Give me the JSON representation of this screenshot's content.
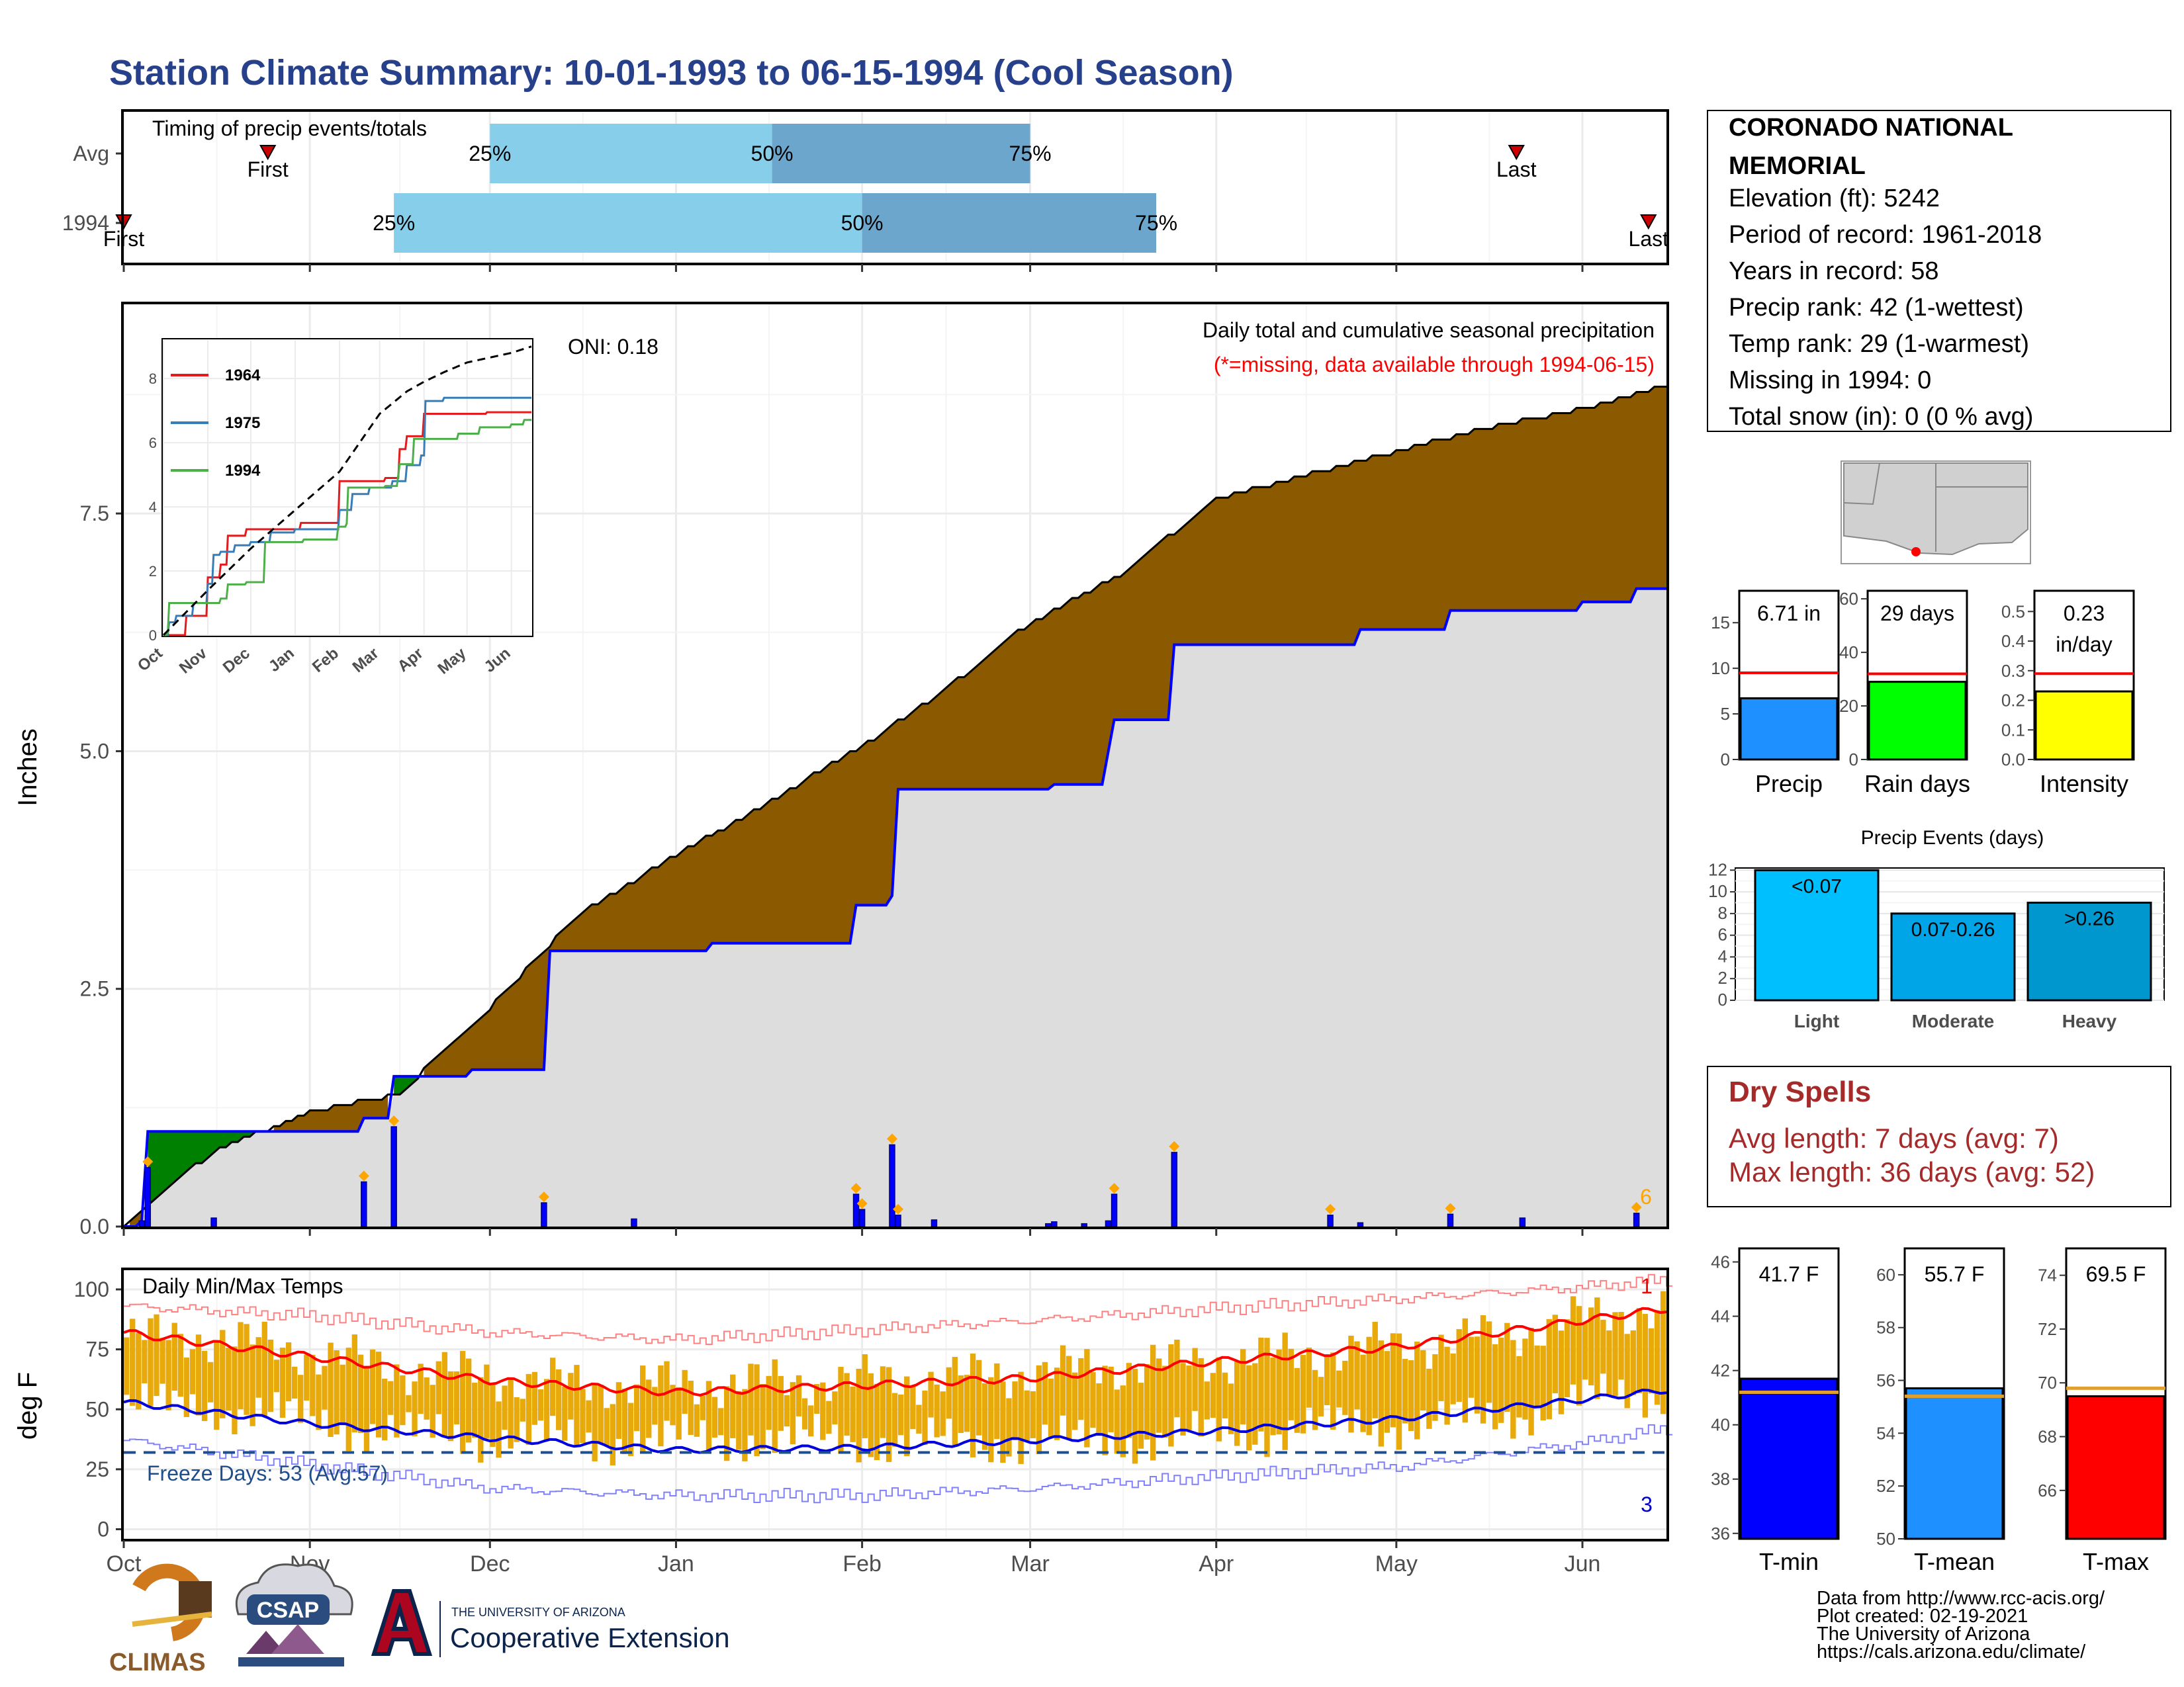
{
  "title": "Station Climate Summary: 10-01-1993 to 06-15-1994 (Cool Season)",
  "colors": {
    "title": "#27408B",
    "cum_1994": "#8B5A00",
    "cum_deficit": "#008000",
    "avg_fill": "#DDDDDD",
    "daily_bar": "#0000FF",
    "temp_bar": "#E8A90A",
    "avg_max": "#FF0000",
    "avg_min": "#0000DD",
    "dry_spell": "#A52A2A",
    "missing": "#FF0000",
    "extreme_marker": "#FFA500"
  },
  "timing": {
    "title": "Timing of precip events/totals",
    "rows": [
      {
        "label": "Avg",
        "q25": "25%",
        "q50": "50%",
        "q75": "75%",
        "first": "First",
        "last": "Last",
        "first_date": "1993-10-25",
        "q25_date": "1993-12-01",
        "q50_date": "1994-01-17",
        "q75_date": "1994-03-01",
        "last_date": "1994-05-21"
      },
      {
        "label": "1994",
        "q25": "25%",
        "q50": "50%",
        "q75": "75%",
        "first": "First",
        "last": "Last",
        "first_date": "1993-10-01",
        "q25_date": "1993-11-15",
        "q50_date": "1994-02-01",
        "q75_date": "1994-03-22",
        "last_date": "1994-06-12"
      }
    ]
  },
  "precip_panel": {
    "ylabel": "Inches",
    "oni": "ONI: 0.18",
    "caption": "Daily total and cumulative seasonal precipitation",
    "missing_note": "(*=missing, data available through 1994-06-15)",
    "count_label": "6"
  },
  "inset": {
    "x_ticks": [
      "Oct",
      "Nov",
      "Dec",
      "Jan",
      "Feb",
      "Mar",
      "Apr",
      "May",
      "Jun"
    ],
    "y_ticks": [
      "0",
      "2",
      "4",
      "6",
      "8"
    ],
    "legend": [
      {
        "name": "1964",
        "color": "#E41A1C"
      },
      {
        "name": "1975",
        "color": "#377EB8"
      },
      {
        "name": "1994",
        "color": "#4DAF4A"
      }
    ]
  },
  "temp_panel": {
    "ylabel": "deg F",
    "title": "Daily Min/Max Temps",
    "freeze": "Freeze Days: 53 (Avg:57)",
    "count_max": "1",
    "count_min": "3"
  },
  "months": [
    "Oct",
    "Nov",
    "Dec",
    "Jan",
    "Feb",
    "Mar",
    "Apr",
    "May",
    "Jun"
  ],
  "station": {
    "name": "CORONADO NATIONAL MEMORIAL",
    "lines": [
      "Elevation (ft): 5242",
      "Period of record: 1961-2018",
      "Years in record: 58",
      "Precip rank: 42 (1-wettest)",
      "Temp rank: 29 (1-warmest)",
      "Missing in 1994: 0",
      "Total snow (in): 0 (0 % avg)"
    ]
  },
  "mini_bars": [
    {
      "label": "Precip",
      "value_text": "6.71 in",
      "value": 6.71,
      "avg": 9.5,
      "ymax": 18.5,
      "ticks": [
        "0",
        "5",
        "10",
        "15"
      ],
      "tick_vals": [
        0,
        5,
        10,
        15
      ],
      "color": "#1E90FF"
    },
    {
      "label": "Rain days",
      "value_text": "29 days",
      "value": 29,
      "avg": 32,
      "ymax": 63,
      "ticks": [
        "0",
        "20",
        "40",
        "60"
      ],
      "tick_vals": [
        0,
        20,
        40,
        60
      ],
      "color": "#00FF00"
    },
    {
      "label": "Intensity",
      "value_text": "0.23 in/day",
      "value": 0.23,
      "avg": 0.29,
      "ymax": 0.57,
      "ticks": [
        "0.0",
        "0.1",
        "0.2",
        "0.3",
        "0.4",
        "0.5"
      ],
      "tick_vals": [
        0,
        0.1,
        0.2,
        0.3,
        0.4,
        0.5
      ],
      "color": "#FFFF00"
    }
  ],
  "precip_events": {
    "title": "Precip Events (days)",
    "ticks": [
      "0",
      "2",
      "4",
      "6",
      "8",
      "10",
      "12"
    ],
    "bars": [
      {
        "category": "Light",
        "label": "<0.07",
        "value": 12,
        "color": "#00BFFF"
      },
      {
        "category": "Moderate",
        "label": "0.07-0.26",
        "value": 8,
        "color": "#00A5E8"
      },
      {
        "category": "Heavy",
        "label": ">0.26",
        "value": 9,
        "color": "#0097CF"
      }
    ]
  },
  "dry_spells": {
    "title": "Dry Spells",
    "avg": "Avg length: 7 days (avg: 7)",
    "max": "Max length: 36 days (avg: 52)"
  },
  "temp_bars": [
    {
      "label": "T-min",
      "value_text": "41.7 F",
      "value": 41.7,
      "avg": 41.2,
      "ymin": 35.8,
      "ymax": 46.5,
      "ticks": [
        "36",
        "38",
        "40",
        "42",
        "44",
        "46"
      ],
      "tick_vals": [
        36,
        38,
        40,
        42,
        44,
        46
      ],
      "color": "#0000FF"
    },
    {
      "label": "T-mean",
      "value_text": "55.7 F",
      "value": 55.7,
      "avg": 55.4,
      "ymin": 50,
      "ymax": 61,
      "ticks": [
        "50",
        "52",
        "54",
        "56",
        "58",
        "60"
      ],
      "tick_vals": [
        50,
        52,
        54,
        56,
        58,
        60
      ],
      "color": "#1E90FF"
    },
    {
      "label": "T-max",
      "value_text": "69.5 F",
      "value": 69.5,
      "avg": 69.8,
      "ymin": 64.2,
      "ymax": 75,
      "ticks": [
        "66",
        "68",
        "70",
        "72",
        "74"
      ],
      "tick_vals": [
        66,
        68,
        70,
        72,
        74
      ],
      "color": "#FF0000"
    }
  ],
  "credits": [
    "Data from http://www.rcc-acis.org/",
    "Plot created: 02-19-2021",
    "The University of Arizona",
    "https://cals.arizona.edu/climate/"
  ],
  "logos": {
    "climas": "CLIMAS",
    "csap": "CSAP",
    "ua_small": "THE UNIVERSITY OF ARIZONA",
    "ua_big": "Cooperative Extension"
  },
  "chart_data": [
    {
      "type": "area",
      "title": "Daily total and cumulative seasonal precipitation",
      "ylabel": "Inches",
      "ylim": [
        0,
        9.7
      ],
      "y_ticks": [
        0,
        2.5,
        5.0,
        7.5
      ],
      "x_ticks": [
        "Oct",
        "Nov",
        "Dec",
        "Jan",
        "Feb",
        "Mar",
        "Apr",
        "May",
        "Jun"
      ],
      "series": [
        {
          "name": "1994",
          "dates": [
            "1993-10-01",
            "1993-10-04",
            "1993-10-05",
            "1993-11-10",
            "1993-11-15",
            "1993-11-28",
            "1993-12-11",
            "1994-01-07",
            "1994-01-31",
            "1994-02-06",
            "1994-02-07",
            "1994-03-05",
            "1994-03-14",
            "1994-03-15",
            "1994-03-25",
            "1994-04-25",
            "1994-05-10",
            "1994-06-01",
            "1994-06-10"
          ],
          "values": [
            0.0,
            0.06,
            1.0,
            1.14,
            1.58,
            1.65,
            2.9,
            2.98,
            3.38,
            3.48,
            4.6,
            4.65,
            4.99,
            5.33,
            6.12,
            6.28,
            6.48,
            6.57,
            6.71
          ]
        },
        {
          "name": "Avg",
          "dates": [
            "1993-10-01",
            "1993-10-16",
            "1993-11-01",
            "1993-11-16",
            "1993-12-01",
            "1993-12-16",
            "1994-01-01",
            "1994-01-16",
            "1994-02-01",
            "1994-02-16",
            "1994-03-01",
            "1994-03-16",
            "1994-04-01",
            "1994-04-16",
            "1994-05-01",
            "1994-05-16",
            "1994-06-01",
            "1994-06-15"
          ],
          "values": [
            0.0,
            0.8,
            1.2,
            1.4,
            2.3,
            3.3,
            3.9,
            4.45,
            5.05,
            5.7,
            6.35,
            6.85,
            7.65,
            7.9,
            8.15,
            8.4,
            8.6,
            8.85
          ]
        }
      ],
      "daily_bars": {
        "dates": [
          "1993-10-04",
          "1993-10-05",
          "1993-10-16",
          "1993-11-10",
          "1993-11-15",
          "1993-12-10",
          "1993-12-25",
          "1994-01-31",
          "1994-02-01",
          "1994-02-06",
          "1994-02-07",
          "1994-02-13",
          "1994-03-04",
          "1994-03-05",
          "1994-03-10",
          "1994-03-14",
          "1994-03-15",
          "1994-03-25",
          "1994-04-20",
          "1994-04-25",
          "1994-05-10",
          "1994-05-22",
          "1994-06-10"
        ],
        "values": [
          0.06,
          0.62,
          0.09,
          0.47,
          1.05,
          0.25,
          0.08,
          0.34,
          0.18,
          0.86,
          0.12,
          0.07,
          0.03,
          0.05,
          0.03,
          0.06,
          0.34,
          0.78,
          0.12,
          0.04,
          0.13,
          0.09,
          0.14
        ]
      }
    },
    {
      "type": "line",
      "title": "",
      "ylim": [
        0,
        9.2
      ],
      "series": [
        {
          "name": "1964",
          "dates": [
            "1993-10-01",
            "1993-10-16",
            "1993-10-17",
            "1993-10-28",
            "1993-11-01",
            "1993-11-10",
            "1993-11-15",
            "1993-11-28",
            "1993-12-15",
            "1994-01-05",
            "1994-01-20",
            "1994-02-01",
            "1994-02-15",
            "1994-03-01",
            "1994-03-05",
            "1994-03-15",
            "1994-03-20",
            "1994-03-29",
            "1994-04-01",
            "1994-04-15",
            "1994-05-15",
            "1994-06-15"
          ],
          "values": [
            0.0,
            0.0,
            0.6,
            0.6,
            1.8,
            2.2,
            3.1,
            3.3,
            3.3,
            3.5,
            3.5,
            4.8,
            4.8,
            4.8,
            4.9,
            5.8,
            6.2,
            6.2,
            6.9,
            6.9,
            6.95,
            6.95
          ]
        },
        {
          "name": "1975",
          "dates": [
            "1993-10-01",
            "1993-10-05",
            "1993-10-10",
            "1993-10-22",
            "1993-10-28",
            "1993-11-01",
            "1993-11-05",
            "1993-11-10",
            "1993-11-20",
            "1993-12-01",
            "1993-12-15",
            "1994-01-01",
            "1994-01-15",
            "1994-02-01",
            "1994-02-10",
            "1994-02-15",
            "1994-02-22",
            "1994-03-01",
            "1994-03-10",
            "1994-03-20",
            "1994-03-30",
            "1994-04-02",
            "1994-04-15",
            "1994-05-15",
            "1994-06-15"
          ],
          "values": [
            0.0,
            0.4,
            0.6,
            1.0,
            1.0,
            1.6,
            2.5,
            2.6,
            2.8,
            2.9,
            3.2,
            3.3,
            3.3,
            3.9,
            4.4,
            4.4,
            4.6,
            4.6,
            4.8,
            5.3,
            5.6,
            7.3,
            7.4,
            7.4,
            7.4
          ]
        },
        {
          "name": "1994",
          "dates": [
            "1993-10-01",
            "1993-10-04",
            "1993-10-05",
            "1993-11-10",
            "1993-11-15",
            "1993-11-28",
            "1993-12-11",
            "1994-01-07",
            "1994-01-31",
            "1994-02-06",
            "1994-02-07",
            "1994-03-05",
            "1994-03-14",
            "1994-03-15",
            "1994-03-25",
            "1994-04-25",
            "1994-05-10",
            "1994-06-01",
            "1994-06-10"
          ],
          "values": [
            0.0,
            0.06,
            1.0,
            1.14,
            1.58,
            1.65,
            2.9,
            2.98,
            3.38,
            3.48,
            4.6,
            4.65,
            4.99,
            5.33,
            6.12,
            6.28,
            6.48,
            6.57,
            6.71
          ]
        },
        {
          "name": "Avg",
          "dates": [
            "1993-10-01",
            "1993-11-01",
            "1993-12-01",
            "1994-01-01",
            "1994-02-01",
            "1994-03-01",
            "1994-03-20",
            "1994-04-01",
            "1994-04-15",
            "1994-05-01",
            "1994-06-01",
            "1994-06-15"
          ],
          "values": [
            0.0,
            1.4,
            2.7,
            3.9,
            5.1,
            6.9,
            7.6,
            7.9,
            8.2,
            8.5,
            8.8,
            9.0
          ]
        }
      ]
    },
    {
      "type": "bar",
      "title": "Daily Min/Max Temps",
      "ylabel": "deg F",
      "ylim": [
        -4,
        108
      ],
      "y_ticks": [
        0,
        25,
        50,
        75,
        100
      ],
      "avg_max": {
        "dates": [
          "1993-10-01",
          "1993-11-01",
          "1993-12-01",
          "1994-01-01",
          "1994-02-01",
          "1994-03-01",
          "1994-04-01",
          "1994-05-01",
          "1994-06-01",
          "1994-06-15"
        ],
        "values": [
          82,
          72,
          62,
          57,
          60,
          63,
          70,
          76,
          87,
          92
        ]
      },
      "avg_min": {
        "dates": [
          "1993-10-01",
          "1993-11-01",
          "1993-12-01",
          "1994-01-01",
          "1994-02-01",
          "1994-03-01",
          "1994-04-01",
          "1994-05-01",
          "1994-06-01",
          "1994-06-15"
        ],
        "values": [
          53,
          44,
          38,
          33,
          34,
          37,
          41,
          46,
          54,
          58
        ]
      },
      "record_max": {
        "dates": [
          "1993-10-01",
          "1993-11-01",
          "1993-12-01",
          "1994-01-01",
          "1994-02-01",
          "1994-03-01",
          "1994-04-01",
          "1994-05-01",
          "1994-06-01",
          "1994-06-15"
        ],
        "values": [
          93,
          89,
          82,
          79,
          83,
          87,
          92,
          96,
          101,
          104
        ]
      },
      "record_min": {
        "dates": [
          "1993-10-01",
          "1993-11-01",
          "1993-12-01",
          "1994-01-01",
          "1994-02-01",
          "1994-03-01",
          "1994-04-01",
          "1994-05-01",
          "1994-06-01",
          "1994-06-15"
        ],
        "values": [
          37,
          27,
          17,
          14,
          14,
          17,
          22,
          26,
          36,
          42
        ]
      },
      "daily_max_monthly": {
        "months": [
          "Oct",
          "Nov",
          "Dec",
          "Jan",
          "Feb",
          "Mar",
          "Apr",
          "May",
          "Jun"
        ],
        "values": [
          80,
          67,
          60,
          61,
          63,
          68,
          73,
          80,
          91
        ]
      },
      "daily_min_monthly": {
        "months": [
          "Oct",
          "Nov",
          "Dec",
          "Jan",
          "Feb",
          "Mar",
          "Apr",
          "May",
          "Jun"
        ],
        "values": [
          51,
          40,
          37,
          38,
          36,
          37,
          42,
          46,
          57
        ]
      },
      "freeze_threshold": 32
    }
  ]
}
